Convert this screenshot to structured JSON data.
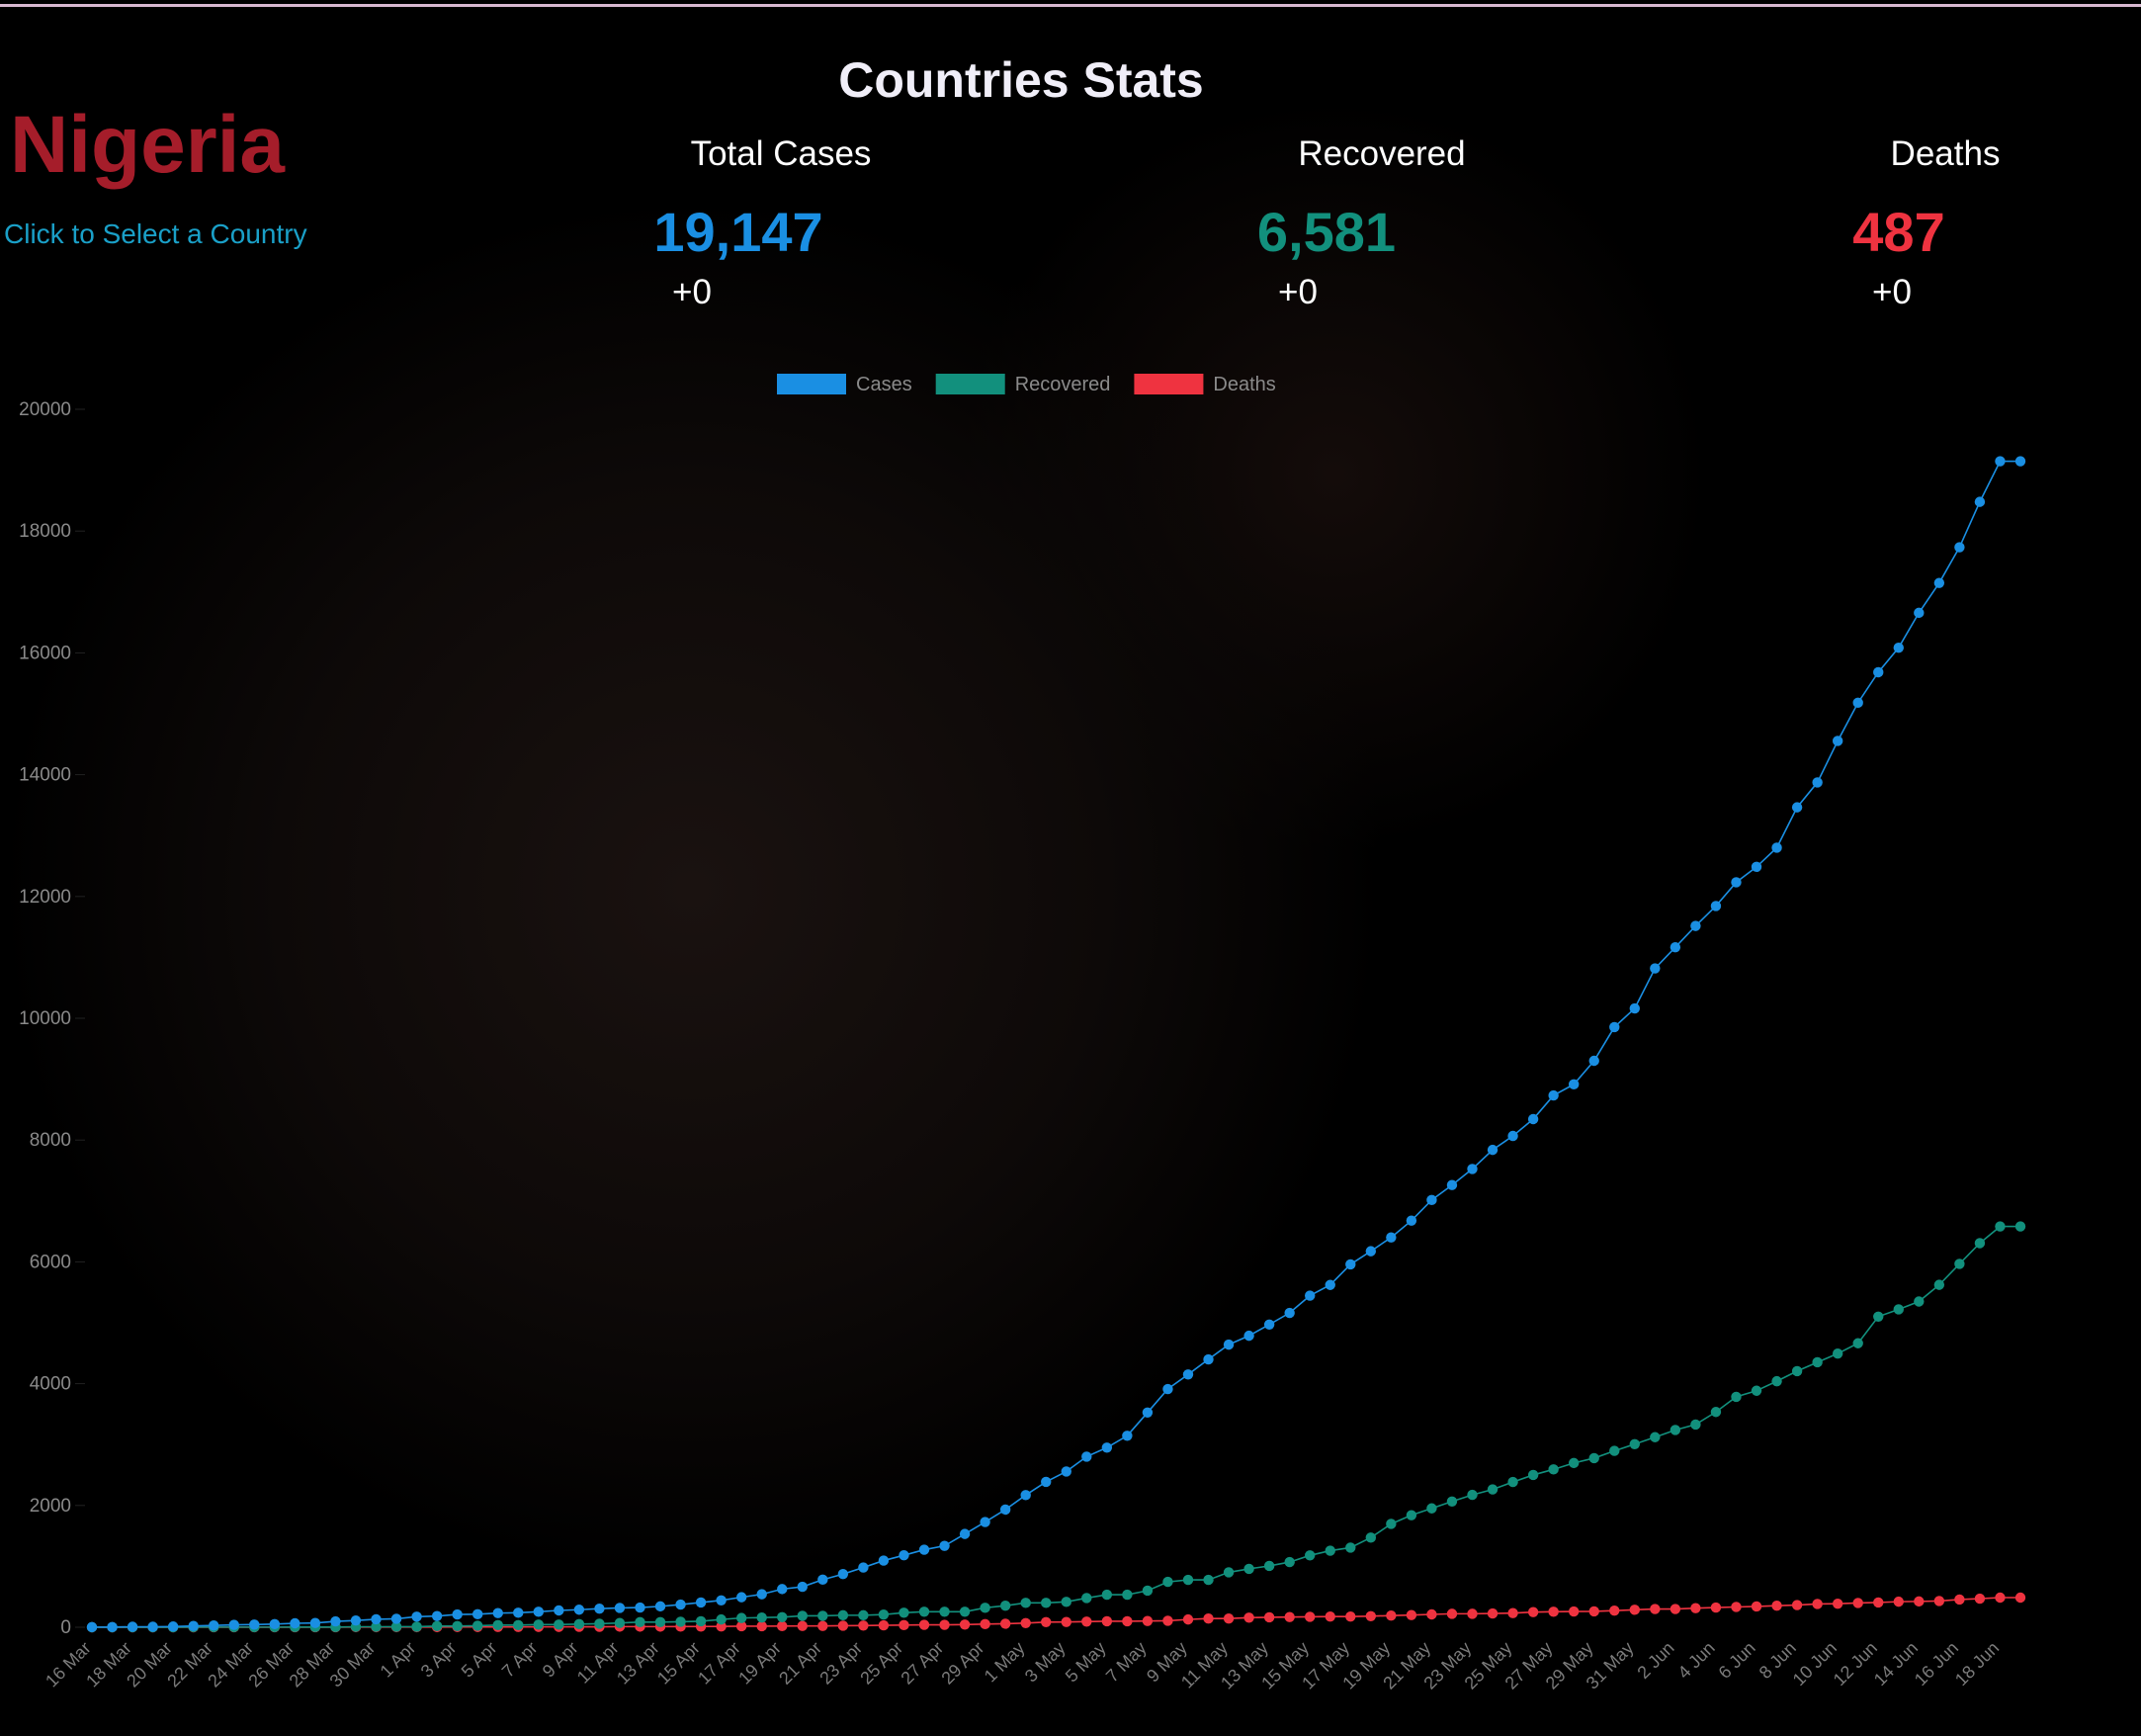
{
  "header": {
    "title": "Countries Stats",
    "country": "Nigeria",
    "select_link": "Click to Select a Country"
  },
  "stats": [
    {
      "label": "Total Cases",
      "value": "19,147",
      "change": "+0",
      "color": "#1a8fe3"
    },
    {
      "label": "Recovered",
      "value": "6,581",
      "change": "+0",
      "color": "#12907d"
    },
    {
      "label": "Deaths",
      "value": "487",
      "change": "+0",
      "color": "#ef3340"
    }
  ],
  "chart_data": {
    "type": "line",
    "categories": [
      "16 Mar",
      null,
      "18 Mar",
      null,
      "20 Mar",
      null,
      "22 Mar",
      null,
      "24 Mar",
      null,
      "26 Mar",
      null,
      "28 Mar",
      null,
      "30 Mar",
      null,
      "1 Apr",
      null,
      "3 Apr",
      null,
      "5 Apr",
      null,
      "7 Apr",
      null,
      "9 Apr",
      null,
      "11 Apr",
      null,
      "13 Apr",
      null,
      "15 Apr",
      null,
      "17 Apr",
      null,
      "19 Apr",
      null,
      "21 Apr",
      null,
      "23 Apr",
      null,
      "25 Apr",
      null,
      "27 Apr",
      null,
      "29 Apr",
      null,
      "1 May",
      null,
      "3 May",
      null,
      "5 May",
      null,
      "7 May",
      null,
      "9 May",
      null,
      "11 May",
      null,
      "13 May",
      null,
      "15 May",
      null,
      "17 May",
      null,
      "19 May",
      null,
      "21 May",
      null,
      "23 May",
      null,
      "25 May",
      null,
      "27 May",
      null,
      "29 May",
      null,
      "31 May",
      null,
      "2 Jun",
      null,
      "4 Jun",
      null,
      "6 Jun",
      null,
      "8 Jun",
      null,
      "10 Jun",
      null,
      "12 Jun",
      null,
      "14 Jun",
      null,
      "16 Jun",
      null,
      "18 Jun",
      null
    ],
    "series": [
      {
        "name": "Cases",
        "color": "#1a8fe3",
        "values": [
          2,
          3,
          8,
          8,
          12,
          22,
          30,
          40,
          44,
          51,
          65,
          70,
          97,
          111,
          131,
          139,
          174,
          184,
          210,
          214,
          232,
          238,
          254,
          276,
          288,
          305,
          318,
          323,
          343,
          373,
          407,
          442,
          493,
          542,
          627,
          665,
          782,
          873,
          981,
          1095,
          1182,
          1273,
          1337,
          1532,
          1728,
          1932,
          2170,
          2388,
          2558,
          2802,
          2950,
          3145,
          3526,
          3912,
          4151,
          4399,
          4641,
          4787,
          4971,
          5162,
          5445,
          5621,
          5959,
          6175,
          6401,
          6677,
          7016,
          7261,
          7526,
          7839,
          8068,
          8344,
          8733,
          8915,
          9302,
          9855,
          10162,
          10819,
          11166,
          11516,
          11844,
          12233,
          12486,
          12801,
          13464,
          13873,
          14554,
          15181,
          15682,
          16085,
          16658,
          17148,
          17735,
          18480,
          19147,
          19147
        ]
      },
      {
        "name": "Recovered",
        "color": "#12907d",
        "values": [
          0,
          0,
          1,
          1,
          1,
          2,
          2,
          2,
          2,
          2,
          3,
          3,
          3,
          8,
          8,
          9,
          9,
          20,
          20,
          25,
          35,
          35,
          44,
          44,
          51,
          58,
          70,
          85,
          85,
          91,
          99,
          128,
          152,
          159,
          166,
          188,
          188,
          197,
          197,
          208,
          239,
          255,
          255,
          255,
          319,
          354,
          400,
          400,
          417,
          480,
          534,
          534,
          601,
          745,
          778,
          778,
          902,
          959,
          1007,
          1070,
          1180,
          1257,
          1308,
          1472,
          1697,
          1840,
          1952,
          2065,
          2174,
          2263,
          2385,
          2501,
          2592,
          2697,
          2777,
          2896,
          3007,
          3121,
          3239,
          3329,
          3535,
          3784,
          3884,
          4040,
          4206,
          4351,
          4494,
          4663,
          5101,
          5220,
          5349,
          5623,
          5967,
          6307,
          6581,
          6581
        ]
      },
      {
        "name": "Deaths",
        "color": "#ef3340",
        "values": [
          0,
          0,
          0,
          0,
          0,
          0,
          1,
          1,
          1,
          1,
          1,
          1,
          1,
          2,
          2,
          2,
          2,
          2,
          4,
          4,
          5,
          5,
          6,
          6,
          7,
          7,
          10,
          10,
          10,
          11,
          12,
          13,
          17,
          17,
          19,
          21,
          22,
          25,
          28,
          32,
          35,
          40,
          40,
          44,
          51,
          58,
          68,
          85,
          87,
          93,
          98,
          98,
          103,
          107,
          128,
          143,
          143,
          158,
          164,
          167,
          171,
          176,
          176,
          182,
          191,
          200,
          211,
          221,
          221,
          226,
          233,
          249,
          254,
          259,
          261,
          273,
          287,
          299,
          299,
          314,
          323,
          333,
          342,
          354,
          365,
          382,
          387,
          399,
          407,
          420,
          424,
          432,
          455,
          469,
          487,
          487
        ]
      }
    ],
    "ylim": [
      0,
      20000
    ],
    "yticks": [
      0,
      2000,
      4000,
      6000,
      8000,
      10000,
      12000,
      14000,
      16000,
      18000,
      20000
    ]
  }
}
